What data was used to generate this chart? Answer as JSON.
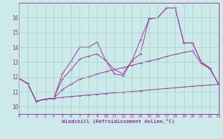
{
  "bg_color": "#cceaea",
  "grid_color": "#aacccc",
  "line_color": "#993399",
  "xlabel": "Windchill (Refroidissement éolien,°C)",
  "xlim": [
    0,
    23
  ],
  "ylim": [
    9.5,
    17.0
  ],
  "yticks": [
    10,
    11,
    12,
    13,
    14,
    15,
    16
  ],
  "xticks": [
    0,
    1,
    2,
    3,
    4,
    5,
    6,
    7,
    8,
    9,
    10,
    11,
    12,
    13,
    14,
    15,
    16,
    17,
    18,
    19,
    20,
    21,
    22,
    23
  ],
  "s1_y": [
    11.9,
    11.55,
    10.35,
    10.5,
    10.55,
    10.62,
    10.68,
    10.73,
    10.78,
    10.83,
    10.88,
    10.93,
    10.97,
    11.02,
    11.07,
    11.12,
    11.17,
    11.22,
    11.27,
    11.32,
    11.37,
    11.42,
    11.45,
    11.5
  ],
  "s2_y": [
    11.9,
    11.55,
    10.35,
    10.5,
    10.55,
    11.15,
    11.5,
    11.85,
    12.0,
    12.2,
    12.35,
    12.5,
    12.62,
    12.78,
    12.93,
    13.08,
    13.2,
    13.38,
    13.52,
    13.65,
    13.75,
    12.9,
    12.55,
    11.5
  ],
  "s3_y": [
    11.9,
    11.55,
    10.35,
    10.5,
    10.55,
    11.85,
    12.5,
    13.2,
    13.4,
    13.55,
    13.1,
    12.5,
    12.2,
    13.1,
    13.55,
    15.95,
    16.0,
    16.65,
    16.65,
    14.3,
    14.3,
    13.0,
    12.6,
    11.5
  ],
  "s4_y": [
    11.9,
    11.55,
    10.35,
    10.5,
    10.55,
    12.2,
    13.05,
    14.0,
    14.0,
    14.35,
    13.1,
    12.2,
    12.1,
    13.05,
    14.5,
    15.9,
    16.0,
    16.65,
    16.65,
    14.3,
    14.3,
    13.0,
    12.6,
    11.5
  ]
}
